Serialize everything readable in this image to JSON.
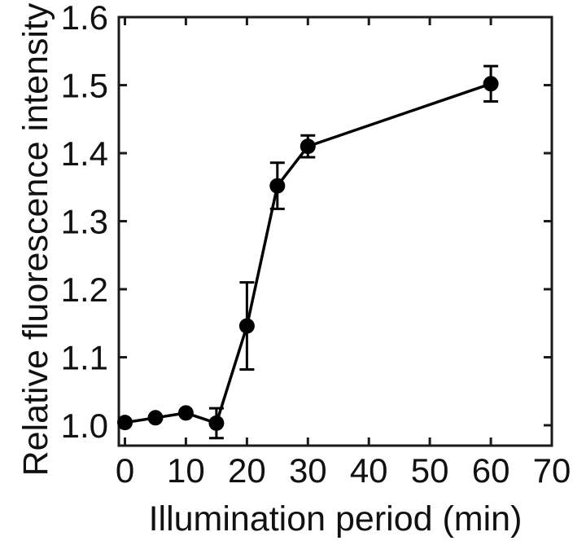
{
  "chart_data": {
    "type": "line",
    "title": "",
    "xlabel": "Illumination period (min)",
    "ylabel": "Relative fluorescence intensity",
    "x": [
      0,
      5,
      10,
      15,
      20,
      25,
      30,
      60
    ],
    "series": [
      {
        "name": "Relative fluorescence intensity",
        "values": [
          1.004,
          1.011,
          1.018,
          1.003,
          1.146,
          1.352,
          1.41,
          1.502
        ],
        "yerr": [
          0,
          0,
          0,
          0.022,
          0.064,
          0.034,
          0.016,
          0.026
        ]
      }
    ],
    "xlim": [
      -1,
      70
    ],
    "ylim": [
      0.97,
      1.6
    ],
    "xticks": [
      0,
      10,
      20,
      30,
      40,
      50,
      60,
      70
    ],
    "xtick_labels": [
      "0",
      "10",
      "20",
      "30",
      "40",
      "50",
      "60",
      "70"
    ],
    "yticks": [
      1.0,
      1.1,
      1.2,
      1.3,
      1.4,
      1.5,
      1.6
    ],
    "ytick_labels": [
      "1.0",
      "1.1",
      "1.2",
      "1.3",
      "1.4",
      "1.5",
      "1.6"
    ],
    "grid": false,
    "legend": "none",
    "marker": "filled-circle",
    "marker_radius": 9.5,
    "line_width": 3.5,
    "error_bar_width": 3,
    "error_cap_half_width": 9,
    "tick_length": 10,
    "frame_width": 3,
    "colors": {
      "line": "#000000",
      "marker": "#000000",
      "axis": "#1a1a1a",
      "text": "#111111",
      "background": "#ffffff"
    }
  }
}
